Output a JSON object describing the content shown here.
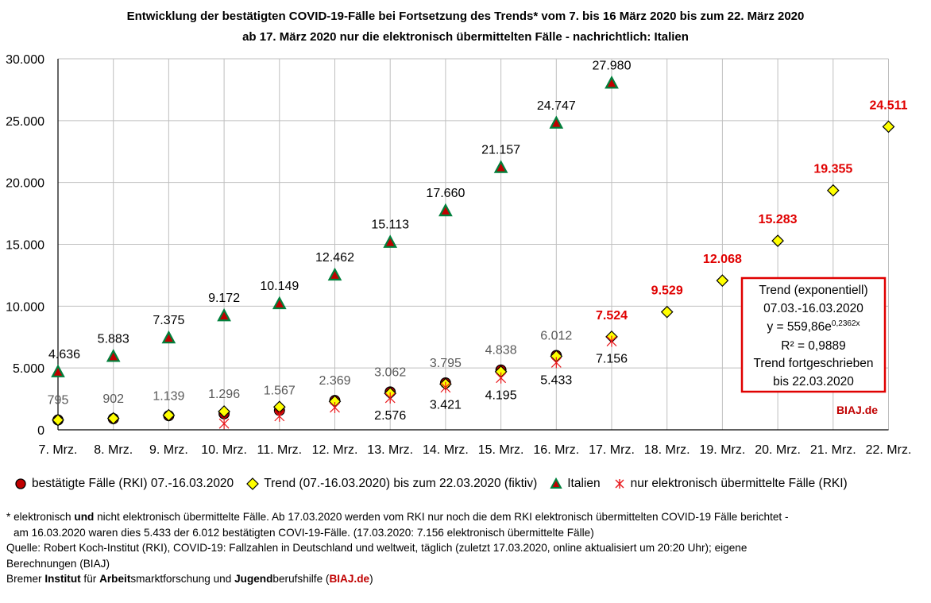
{
  "chart_data": {
    "type": "scatter",
    "title_line1": "Entwicklung der bestätigten COVID-19-Fälle bei Fortsetzung des Trends* vom 7. bis 16 März 2020 bis zum 22. März 2020",
    "title_line2": "ab 17. März 2020 nur die elektronisch übermittelten Fälle - nachrichtlich: Italien",
    "categories": [
      "7. Mrz.",
      "8. Mrz.",
      "9. Mrz.",
      "10. Mrz.",
      "11. Mrz.",
      "12. Mrz.",
      "13. Mrz.",
      "14. Mrz.",
      "15. Mrz.",
      "16. Mrz.",
      "17. Mrz.",
      "18. Mrz.",
      "19. Mrz.",
      "20. Mrz.",
      "21. Mrz.",
      "22. Mrz."
    ],
    "ylim": [
      0,
      30000
    ],
    "yticks": [
      0,
      5000,
      10000,
      15000,
      20000,
      25000,
      30000
    ],
    "ytick_labels": [
      "0",
      "5.000",
      "10.000",
      "15.000",
      "20.000",
      "25.000",
      "30.000"
    ],
    "grid": true,
    "series": [
      {
        "name": "bestätigte Fälle (RKI) 07.-16.03.2020",
        "marker": "circle",
        "color": "#c00000",
        "values": [
          795,
          902,
          1139,
          1296,
          1567,
          2369,
          3062,
          3795,
          4838,
          6012,
          null,
          null,
          null,
          null,
          null,
          null
        ]
      },
      {
        "name": "Trend (07.-16.03.2020) bis zum 22.03.2020 (fiktiv)",
        "marker": "diamond",
        "color": "#ffff00",
        "values": [
          790,
          930,
          1180,
          1480,
          1850,
          2300,
          2950,
          3700,
          4700,
          5950,
          7524,
          9529,
          12068,
          15283,
          19355,
          24511
        ]
      },
      {
        "name": "Italien",
        "marker": "triangle",
        "color": "#00803c",
        "values": [
          4636,
          5883,
          7375,
          9172,
          10149,
          12462,
          15113,
          17660,
          21157,
          24747,
          27980,
          null,
          null,
          null,
          null,
          null
        ]
      },
      {
        "name": "nur elektronisch übermittelte Fälle (RKI)",
        "marker": "star",
        "color": "#e8171b",
        "values": [
          null,
          null,
          null,
          500,
          1100,
          1800,
          2576,
          3421,
          4195,
          5433,
          7156,
          null,
          null,
          null,
          null,
          null
        ]
      }
    ],
    "data_labels": {
      "confirmed": [
        "795",
        "902",
        "1.139",
        "1.296",
        "1.567",
        "2.369",
        "3.062",
        "3.795",
        "4.838",
        "6.012"
      ],
      "trend": [
        "7.524",
        "9.529",
        "12.068",
        "15.283",
        "19.355",
        "24.511"
      ],
      "italy": [
        "4.636",
        "5.883",
        "7.375",
        "9.172",
        "10.149",
        "12.462",
        "15.113",
        "17.660",
        "21.157",
        "24.747",
        "27.980"
      ],
      "electronic": [
        "2.576",
        "3.421",
        "4.195",
        "5.433",
        "7.156"
      ]
    },
    "annotation_box": {
      "line1": "Trend (exponentiell)",
      "line2": "07.03.-16.03.2020",
      "formula_main": "y = 559,86e",
      "formula_exp": "0,2362x",
      "line4": "R² = 0,9889",
      "line5": "Trend fortgeschrieben",
      "line6": "bis 22.03.2020",
      "border_color": "#e00000"
    },
    "watermark": "BIAJ.de"
  },
  "legend": {
    "confirmed": "bestätigte Fälle (RKI) 07.-16.03.2020",
    "trend": "Trend (07.-16.03.2020) bis zum 22.03.2020 (fiktiv)",
    "italy": "Italien",
    "electronic": "nur elektronisch übermittelte Fälle (RKI)"
  },
  "footnote": {
    "l1_a": "* elektronisch ",
    "l1_b": "und",
    "l1_c": " nicht elektronisch übermittelte  Fälle. Ab 17.03.2020 werden vom RKI nur noch die dem RKI elektronisch übermittelten COVID-19 Fälle berichtet -",
    "l2": "am 16.03.2020 waren dies 5.433 der 6.012 bestätigten COVI-19-Fälle. (17.03.2020: 7.156 elektronisch übermittelte Fälle)",
    "source_1": "Quelle: Robert Koch-Institut (RKI), COVID-19: Fallzahlen in Deutschland und weltweit, täglich (zuletzt 17.03.2020, online aktualisiert um 20:20 Uhr); eigene",
    "source_2": "Berechnungen (BIAJ)",
    "credit_a": "Bremer ",
    "credit_b": "Institut",
    "credit_c": " für ",
    "credit_d": "Arbeit",
    "credit_e": "smarktforschung und ",
    "credit_f": "Jugend",
    "credit_g": "berufshilfe (",
    "credit_h": "BIAJ.de",
    "credit_i": ")"
  }
}
